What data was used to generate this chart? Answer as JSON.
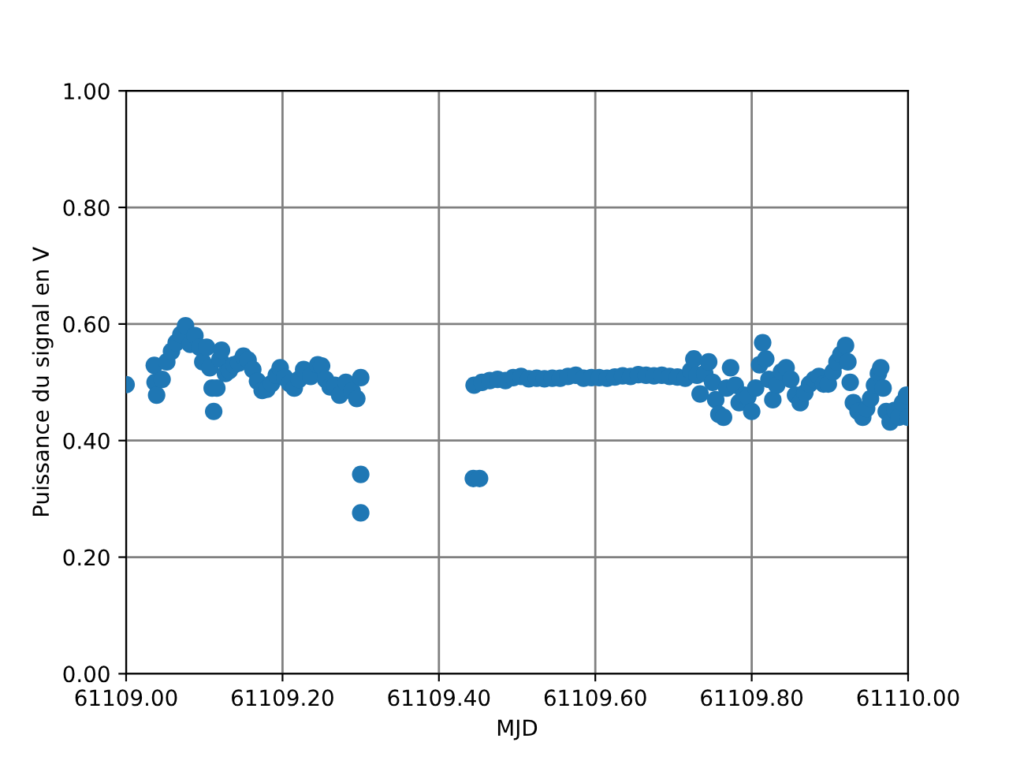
{
  "chart_data": {
    "type": "scatter",
    "xlabel": "MJD",
    "ylabel": "Puissance du signal en V",
    "color": "#1f77b4",
    "marker": "circle",
    "grid": true,
    "xlim": [
      61109.0,
      61110.0
    ],
    "xticks": [
      {
        "value": 61109.0,
        "label": "61109.00"
      },
      {
        "value": 61109.2,
        "label": "61109.20"
      },
      {
        "value": 61109.4,
        "label": "61109.40"
      },
      {
        "value": 61109.6,
        "label": "61109.60"
      },
      {
        "value": 61109.8,
        "label": "61109.80"
      },
      {
        "value": 61110.0,
        "label": "61110.00"
      }
    ],
    "ylim": [
      0.0,
      1.0
    ],
    "yticks": [
      {
        "value": 0.0,
        "label": "0.00"
      },
      {
        "value": 0.2,
        "label": "0.20"
      },
      {
        "value": 0.4,
        "label": "0.40"
      },
      {
        "value": 0.6,
        "label": "0.60"
      },
      {
        "value": 0.8,
        "label": "0.80"
      },
      {
        "value": 1.0,
        "label": "1.00"
      }
    ],
    "x": [
      61109.0,
      61109.036,
      61109.037,
      61109.039,
      61109.046,
      61109.052,
      61109.058,
      61109.064,
      61109.07,
      61109.076,
      61109.082,
      61109.088,
      61109.094,
      61109.098,
      61109.103,
      61109.107,
      61109.11,
      61109.112,
      61109.116,
      61109.12,
      61109.122,
      61109.127,
      61109.132,
      61109.138,
      61109.144,
      61109.15,
      61109.156,
      61109.162,
      61109.168,
      61109.174,
      61109.18,
      61109.186,
      61109.192,
      61109.197,
      61109.203,
      61109.209,
      61109.215,
      61109.221,
      61109.227,
      61109.236,
      61109.245,
      61109.25,
      61109.255,
      61109.261,
      61109.267,
      61109.273,
      61109.281,
      61109.289,
      61109.295,
      61109.3,
      61109.3,
      61109.3,
      61109.444,
      61109.452,
      61109.445,
      61109.455,
      61109.465,
      61109.475,
      61109.485,
      61109.495,
      61109.505,
      61109.515,
      61109.525,
      61109.535,
      61109.545,
      61109.555,
      61109.565,
      61109.575,
      61109.585,
      61109.595,
      61109.605,
      61109.615,
      61109.625,
      61109.635,
      61109.645,
      61109.655,
      61109.665,
      61109.675,
      61109.685,
      61109.695,
      61109.705,
      61109.715,
      61109.722,
      61109.726,
      61109.73,
      61109.734,
      61109.74,
      61109.745,
      61109.75,
      61109.754,
      61109.758,
      61109.764,
      61109.768,
      61109.773,
      61109.779,
      61109.784,
      61109.79,
      61109.795,
      61109.8,
      61109.805,
      61109.81,
      61109.814,
      61109.818,
      61109.822,
      61109.827,
      61109.832,
      61109.838,
      61109.844,
      61109.85,
      61109.856,
      61109.862,
      61109.868,
      61109.874,
      61109.88,
      61109.886,
      61109.892,
      61109.898,
      61109.904,
      61109.909,
      61109.914,
      61109.92,
      61109.923,
      61109.926,
      61109.93,
      61109.936,
      61109.942,
      61109.947,
      61109.952,
      61109.957,
      61109.962,
      61109.965,
      61109.968,
      61109.972,
      61109.977,
      61109.983,
      61109.988,
      61109.993,
      61109.998,
      61110.0
    ],
    "values": [
      0.496,
      0.529,
      0.5,
      0.478,
      0.505,
      0.535,
      0.553,
      0.568,
      0.582,
      0.597,
      0.565,
      0.58,
      0.56,
      0.535,
      0.56,
      0.525,
      0.49,
      0.45,
      0.49,
      0.54,
      0.555,
      0.515,
      0.52,
      0.53,
      0.533,
      0.545,
      0.538,
      0.522,
      0.502,
      0.486,
      0.488,
      0.498,
      0.512,
      0.525,
      0.508,
      0.498,
      0.49,
      0.505,
      0.522,
      0.51,
      0.53,
      0.528,
      0.505,
      0.492,
      0.495,
      0.478,
      0.5,
      0.485,
      0.472,
      0.508,
      0.342,
      0.276,
      0.335,
      0.335,
      0.495,
      0.5,
      0.503,
      0.505,
      0.503,
      0.508,
      0.51,
      0.506,
      0.507,
      0.506,
      0.507,
      0.507,
      0.51,
      0.512,
      0.507,
      0.508,
      0.508,
      0.507,
      0.509,
      0.511,
      0.51,
      0.513,
      0.512,
      0.511,
      0.512,
      0.51,
      0.509,
      0.507,
      0.52,
      0.54,
      0.512,
      0.48,
      0.515,
      0.535,
      0.5,
      0.47,
      0.445,
      0.44,
      0.49,
      0.525,
      0.495,
      0.465,
      0.478,
      0.475,
      0.45,
      0.49,
      0.53,
      0.568,
      0.54,
      0.505,
      0.47,
      0.495,
      0.518,
      0.525,
      0.505,
      0.478,
      0.465,
      0.482,
      0.497,
      0.505,
      0.51,
      0.497,
      0.497,
      0.518,
      0.535,
      0.548,
      0.563,
      0.535,
      0.5,
      0.465,
      0.45,
      0.44,
      0.455,
      0.472,
      0.495,
      0.515,
      0.525,
      0.49,
      0.45,
      0.432,
      0.452,
      0.44,
      0.465,
      0.478,
      0.44
    ]
  }
}
